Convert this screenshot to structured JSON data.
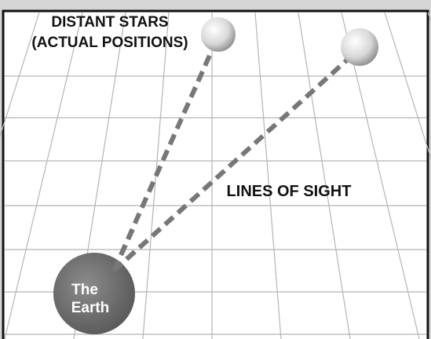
{
  "stars_label": [
    "DISTANT STARS",
    "(ACTUAL POSITIONS)"
  ],
  "lines_label": "LINES OF SIGHT",
  "earth_label": [
    "The",
    "Earth"
  ]
}
